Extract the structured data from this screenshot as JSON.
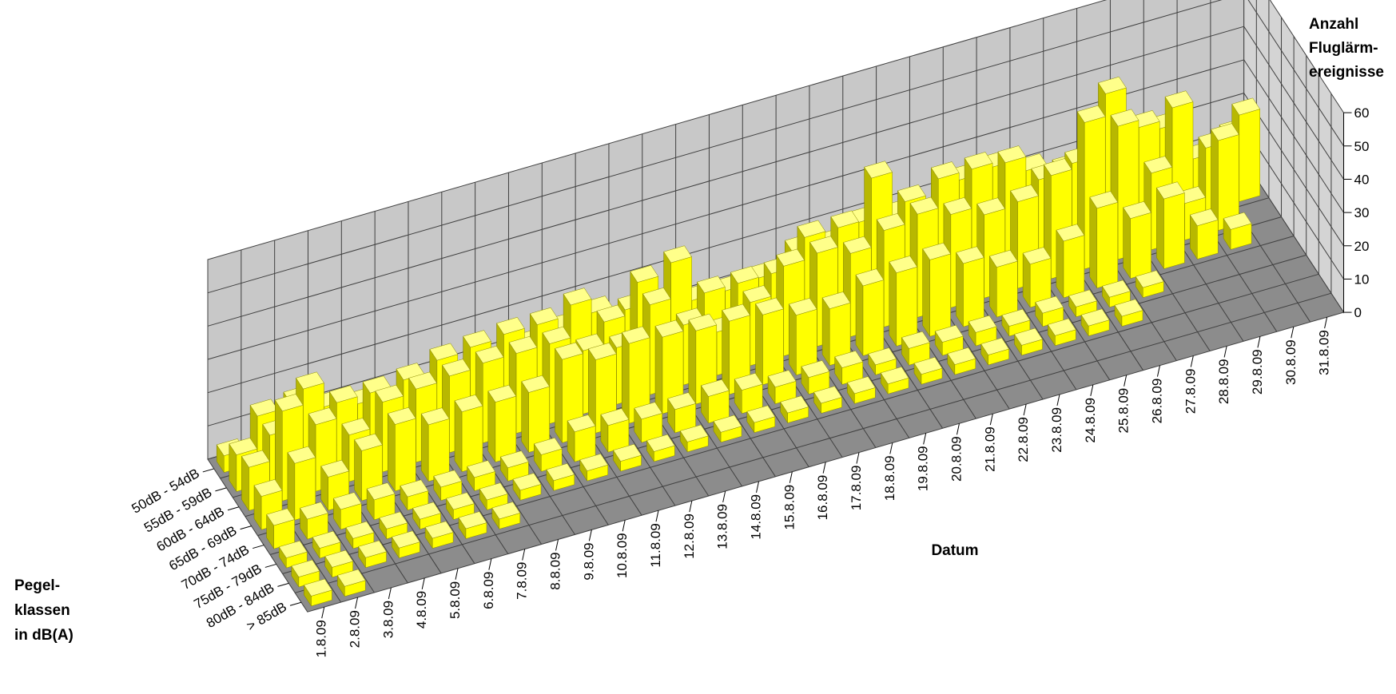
{
  "chart_data": {
    "type": "bar3d",
    "title": "",
    "x_axis_label": "Datum",
    "y_axis_label_lines": [
      "Pegel-",
      "klassen",
      "in dB(A)"
    ],
    "z_axis_label_lines": [
      "Anzahl",
      "Fluglärm-",
      "ereignisse"
    ],
    "zlim": [
      0,
      60
    ],
    "z_ticks": [
      "0",
      "10",
      "20",
      "30",
      "40",
      "50",
      "60"
    ],
    "grid": true,
    "colors": {
      "bar": "#ffff00",
      "floor": "#8c8c8c",
      "walls": "#c8c8c8",
      "grid": "#404040"
    },
    "dates": [
      "1.8.09",
      "2.8.09",
      "3.8.09",
      "4.8.09",
      "5.8.09",
      "6.8.09",
      "7.8.09",
      "8.8.09",
      "9.8.09",
      "10.8.09",
      "11.8.09",
      "12.8.09",
      "13.8.09",
      "14.8.09",
      "15.8.09",
      "16.8.09",
      "17.8.09",
      "18.8.09",
      "19.8.09",
      "20.8.09",
      "21.8.09",
      "22.8.09",
      "23.8.09",
      "24.8.09",
      "25.8.09",
      "26.8.09",
      "27.8.09",
      "28.8.09",
      "29.8.09",
      "30.8.09",
      "31.8.09"
    ],
    "classes": [
      "50dB - 54dB",
      "55dB - 59dB",
      "60dB - 64dB",
      "65dB - 69dB",
      "70dB - 74dB",
      "75dB - 79dB",
      "80dB - 84dB",
      "> 85dB"
    ],
    "values_by_class": [
      [
        5,
        14,
        15,
        11,
        9,
        7,
        7,
        6,
        9,
        12,
        14,
        16,
        14,
        11,
        11,
        11,
        12,
        17,
        16,
        20,
        19,
        17,
        24,
        25,
        21,
        18,
        19,
        23,
        22,
        10,
        14
      ],
      [
        11,
        14,
        25,
        18,
        18,
        19,
        22,
        23,
        24,
        24,
        27,
        19,
        28,
        31,
        19,
        19,
        19,
        27,
        27,
        39,
        29,
        33,
        33,
        32,
        24,
        26,
        44,
        31,
        34,
        19,
        26
      ],
      [
        13,
        27,
        20,
        14,
        21,
        22,
        23,
        24,
        24,
        24,
        19,
        17,
        27,
        18,
        13,
        19,
        27,
        28,
        25,
        29,
        31,
        28,
        25,
        26,
        31,
        44,
        40,
        23,
        11,
        27,
        0
      ],
      [
        10,
        17,
        10,
        15,
        20,
        17,
        18,
        18,
        18,
        25,
        22,
        24,
        23,
        22,
        22,
        21,
        18,
        17,
        21,
        22,
        23,
        19,
        15,
        13,
        17,
        24,
        18,
        21,
        10,
        6,
        0
      ],
      [
        7,
        6,
        6,
        6,
        4,
        4,
        4,
        4,
        5,
        9,
        8,
        7,
        7,
        8,
        7,
        5,
        5,
        5,
        3,
        5,
        4,
        4,
        3,
        4,
        3,
        3,
        3,
        0,
        0,
        0,
        0
      ],
      [
        3,
        3,
        3,
        3,
        3,
        3,
        3,
        3,
        3,
        3,
        3,
        3,
        3,
        3,
        3,
        3,
        3,
        3,
        3,
        3,
        3,
        3,
        3,
        3,
        3,
        3,
        0,
        0,
        0,
        0,
        0
      ],
      [
        3,
        3,
        3,
        3,
        3,
        3,
        3,
        0,
        0,
        0,
        0,
        0,
        0,
        0,
        0,
        0,
        0,
        0,
        0,
        0,
        0,
        0,
        0,
        0,
        0,
        0,
        0,
        0,
        0,
        0,
        0
      ],
      [
        3,
        3,
        0,
        0,
        0,
        0,
        0,
        0,
        0,
        0,
        0,
        0,
        0,
        0,
        0,
        0,
        0,
        0,
        0,
        0,
        0,
        0,
        0,
        0,
        0,
        0,
        0,
        0,
        0,
        0,
        0
      ]
    ]
  }
}
